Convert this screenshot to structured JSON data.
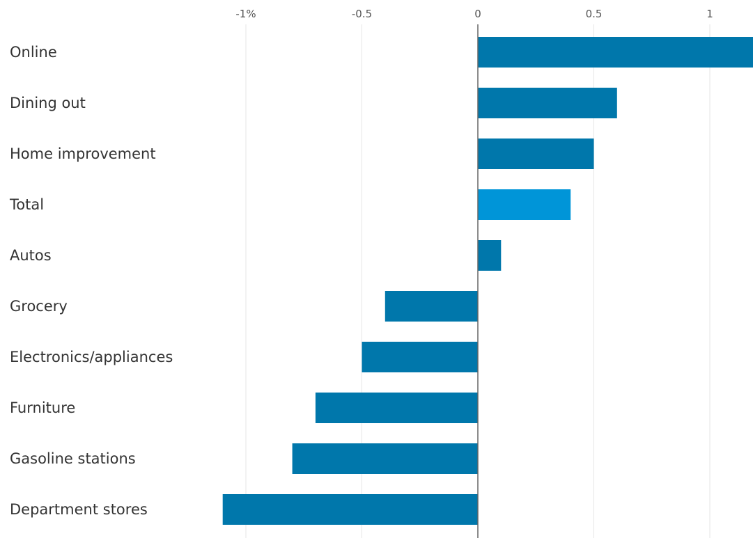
{
  "chart_data": {
    "type": "bar",
    "orientation": "horizontal",
    "title": "",
    "xlabel": "",
    "ylabel": "",
    "categories": [
      "Online",
      "Dining out",
      "Home improvement",
      "Total",
      "Autos",
      "Grocery",
      "Electronics/appliances",
      "Furniture",
      "Gasoline stations",
      "Department stores"
    ],
    "values": [
      1.19,
      0.6,
      0.5,
      0.4,
      0.1,
      -0.4,
      -0.5,
      -0.7,
      -0.8,
      -1.1
    ],
    "highlight": "Total",
    "xlim": [
      -1.04,
      1.19
    ],
    "xticks": [
      -1,
      -0.5,
      0,
      0.5,
      1
    ],
    "xtick_labels": [
      "-1%",
      "-0.5",
      "0",
      "0.5",
      "1"
    ],
    "grid": true,
    "legend": "none",
    "colors": {
      "bar": "#0077ab",
      "highlight": "#0095d8",
      "grid": "#e6e6e6",
      "zero_line": "#666666"
    }
  }
}
